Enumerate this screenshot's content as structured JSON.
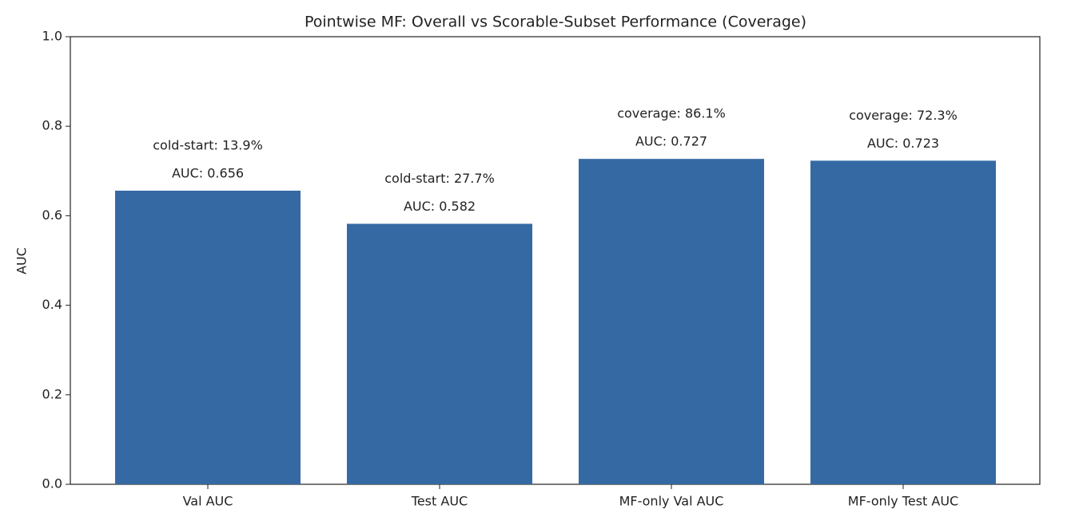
{
  "chart_data": {
    "type": "bar",
    "title": "Pointwise MF: Overall vs Scorable-Subset Performance (Coverage)",
    "y_label": "AUC",
    "categories": [
      "Val AUC",
      "Test AUC",
      "MF-only Val AUC",
      "MF-only Test AUC"
    ],
    "values": [
      0.656,
      0.582,
      0.727,
      0.723
    ],
    "value_labels": [
      "AUC: 0.656",
      "AUC: 0.582",
      "AUC: 0.727",
      "AUC: 0.723"
    ],
    "annotations": [
      "cold-start: 13.9%",
      "cold-start: 27.7%",
      "coverage: 86.1%",
      "coverage: 72.3%"
    ],
    "color": "#3569a3",
    "ylim": [
      0,
      1
    ],
    "yticks": [
      {
        "value": 0,
        "label": "0.0"
      },
      0.2,
      0.4,
      0.6,
      0.8,
      {
        "value": 1,
        "label": "1.0"
      }
    ],
    "grid": false
  }
}
